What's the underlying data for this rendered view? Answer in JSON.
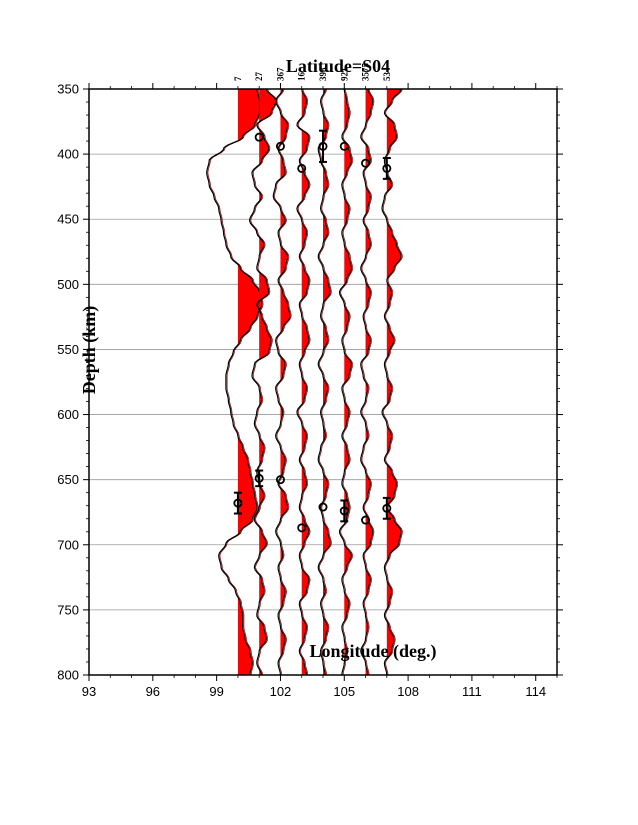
{
  "chart_data": {
    "type": "line",
    "title": "Latitude=S04",
    "xlabel": "Longitude (deg.)",
    "ylabel": "Depth (km)",
    "xlim": [
      93,
      115
    ],
    "ylim": [
      350,
      800
    ],
    "y_inverted": true,
    "x_ticks": [
      93,
      96,
      99,
      102,
      105,
      108,
      111,
      114
    ],
    "y_ticks": [
      350,
      400,
      450,
      500,
      550,
      600,
      650,
      700,
      750,
      800
    ],
    "grid": "horizontal",
    "positive_fill_color": "#ff0000",
    "trace_color": "#000000",
    "traces": [
      {
        "longitude": 100,
        "count": "7",
        "amplitude": [
          0.8,
          0.9,
          0.9,
          0.7,
          0.2,
          -0.6,
          -1.2,
          -1.3,
          -1.2,
          -1.0,
          -0.8,
          -0.7,
          -0.6,
          -0.5,
          -0.3,
          0.1,
          0.6,
          0.9,
          1.0,
          0.8,
          0.5,
          0.1,
          -0.2,
          -0.4,
          -0.5,
          -0.5,
          -0.4,
          -0.3,
          -0.2,
          0.0,
          0.2,
          0.4,
          0.5,
          0.6,
          0.7,
          0.8,
          0.6,
          0.1,
          -0.5,
          -0.8,
          -0.7,
          -0.4,
          -0.1,
          0.1,
          0.2,
          0.2,
          0.3,
          0.5,
          0.6,
          0.5
        ],
        "picks": [
          {
            "depth": 668,
            "error": 8
          }
        ]
      },
      {
        "longitude": 101,
        "count": "27",
        "amplitude": [
          0.3,
          0.7,
          0.5,
          -0.1,
          0.2,
          0.4,
          0.1,
          -0.3,
          -0.2,
          0.1,
          -0.2,
          -0.4,
          -0.1,
          0.2,
          0.0,
          -0.1,
          0.3,
          0.4,
          -0.1,
          0.1,
          0.3,
          0.5,
          0.4,
          -0.2,
          -0.3,
          0.0,
          0.1,
          -0.1,
          -0.2,
          0.0,
          0.2,
          0.1,
          -0.1,
          0.0,
          0.2,
          0.0,
          -0.2,
          0.1,
          0.3,
          0.0,
          -0.2,
          0.1,
          0.2,
          0.0,
          -0.1,
          0.2,
          0.3,
          0.0,
          -0.1,
          0.1
        ],
        "picks": [
          {
            "depth": 387,
            "error": 0
          },
          {
            "depth": 649,
            "error": 6
          }
        ]
      },
      {
        "longitude": 102,
        "count": "367",
        "amplitude": [
          0.1,
          -0.2,
          0.0,
          0.3,
          0.2,
          -0.1,
          0.1,
          0.2,
          -0.2,
          -0.3,
          0.0,
          0.2,
          -0.1,
          0.0,
          0.3,
          0.2,
          -0.1,
          0.1,
          0.3,
          0.4,
          0.1,
          -0.2,
          -0.1,
          0.2,
          0.1,
          -0.2,
          -0.1,
          0.1,
          0.0,
          -0.2,
          0.0,
          0.2,
          0.1,
          -0.1,
          0.2,
          0.3,
          0.0,
          -0.2,
          0.0,
          0.1,
          -0.1,
          0.0,
          0.2,
          0.1,
          -0.1,
          0.0,
          0.2,
          0.1,
          -0.1,
          0.0
        ],
        "picks": [
          {
            "depth": 394,
            "error": 0
          },
          {
            "depth": 650,
            "error": 0
          }
        ]
      },
      {
        "longitude": 103,
        "count": "16",
        "amplitude": [
          0.0,
          0.2,
          0.1,
          -0.2,
          0.3,
          0.2,
          -0.1,
          0.1,
          0.3,
          0.1,
          -0.2,
          0.0,
          0.2,
          0.1,
          -0.1,
          0.1,
          0.3,
          0.2,
          -0.1,
          0.0,
          0.2,
          0.3,
          0.1,
          -0.1,
          0.0,
          0.2,
          0.1,
          -0.2,
          0.0,
          0.2,
          0.1,
          -0.1,
          0.1,
          0.2,
          0.0,
          -0.1,
          0.1,
          0.3,
          0.1,
          -0.1,
          0.0,
          0.3,
          0.2,
          -0.1,
          0.0,
          0.2,
          0.1,
          -0.1,
          0.1,
          0.2
        ],
        "picks": [
          {
            "depth": 411,
            "error": 0
          },
          {
            "depth": 687,
            "error": 0
          }
        ]
      },
      {
        "longitude": 104,
        "count": "398",
        "amplitude": [
          0.1,
          -0.1,
          0.0,
          0.2,
          0.1,
          -0.2,
          -0.1,
          0.1,
          0.2,
          0.0,
          -0.1,
          0.1,
          0.2,
          0.0,
          -0.2,
          0.0,
          0.2,
          0.3,
          0.0,
          -0.1,
          0.1,
          0.2,
          0.0,
          -0.2,
          0.0,
          0.2,
          0.1,
          -0.1,
          0.0,
          0.1,
          -0.1,
          -0.2,
          0.0,
          0.2,
          0.1,
          -0.1,
          0.0,
          0.2,
          0.3,
          0.0,
          -0.2,
          0.0,
          0.1,
          -0.1,
          0.0,
          0.2,
          0.1,
          -0.1,
          0.0,
          0.1
        ],
        "picks": [
          {
            "depth": 394,
            "error": 12
          },
          {
            "depth": 671,
            "error": 0
          }
        ]
      },
      {
        "longitude": 105,
        "count": "921",
        "amplitude": [
          0.0,
          0.1,
          0.2,
          0.1,
          -0.1,
          0.2,
          0.3,
          0.1,
          -0.1,
          0.0,
          0.2,
          0.1,
          -0.1,
          0.0,
          0.2,
          0.3,
          0.1,
          -0.2,
          0.0,
          0.2,
          0.1,
          -0.1,
          0.0,
          0.3,
          0.2,
          -0.1,
          0.0,
          0.2,
          0.1,
          -0.1,
          0.1,
          0.2,
          0.0,
          -0.1,
          0.1,
          0.2,
          0.1,
          -0.2,
          0.0,
          0.3,
          0.1,
          -0.1,
          0.0,
          0.2,
          0.1,
          -0.1,
          0.0,
          0.1,
          0.0,
          -0.1
        ],
        "picks": [
          {
            "depth": 394,
            "error": 0
          },
          {
            "depth": 674,
            "error": 8
          }
        ]
      },
      {
        "longitude": 106,
        "count": "3575",
        "amplitude": [
          0.1,
          0.3,
          0.2,
          0.0,
          -0.2,
          0.1,
          0.2,
          -0.1,
          0.0,
          0.2,
          0.1,
          -0.1,
          0.1,
          0.2,
          0.0,
          -0.2,
          0.0,
          0.2,
          0.1,
          -0.1,
          0.0,
          0.2,
          0.1,
          -0.2,
          -0.1,
          0.1,
          0.0,
          -0.2,
          0.0,
          0.1,
          -0.1,
          -0.2,
          0.0,
          0.2,
          0.1,
          -0.1,
          0.1,
          0.3,
          0.2,
          -0.1,
          0.0,
          0.2,
          0.1,
          -0.1,
          0.0,
          0.1,
          0.0,
          -0.2,
          0.0,
          0.1
        ],
        "picks": [
          {
            "depth": 407,
            "error": 0
          },
          {
            "depth": 681,
            "error": 0
          }
        ]
      },
      {
        "longitude": 107,
        "count": "53",
        "amplitude": [
          0.6,
          0.2,
          -0.1,
          0.3,
          0.4,
          0.1,
          -0.1,
          0.0,
          0.2,
          -0.1,
          -0.2,
          0.0,
          0.2,
          0.4,
          0.6,
          0.3,
          0.0,
          0.2,
          0.1,
          -0.1,
          0.1,
          0.3,
          0.1,
          -0.1,
          0.0,
          0.2,
          0.1,
          -0.2,
          0.0,
          0.2,
          0.1,
          -0.1,
          0.2,
          0.4,
          0.3,
          0.0,
          0.3,
          0.6,
          0.5,
          0.1,
          -0.1,
          0.0,
          0.2,
          0.1,
          -0.1,
          0.1,
          0.3,
          0.2,
          -0.1,
          0.0
        ],
        "picks": [
          {
            "depth": 411,
            "error": 8
          },
          {
            "depth": 672,
            "error": 8
          }
        ]
      }
    ]
  }
}
